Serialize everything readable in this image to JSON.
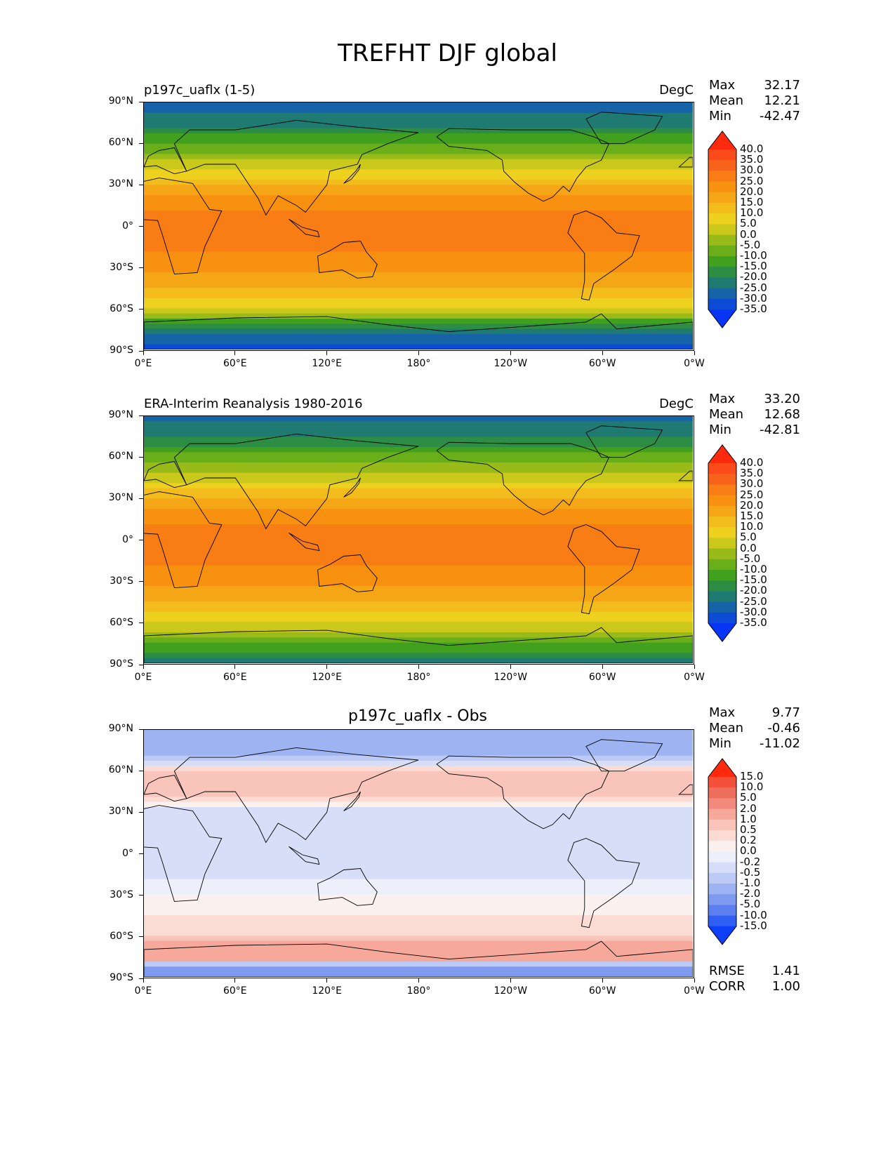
{
  "suptitle": "TREFHT DJF global",
  "panels": [
    {
      "left_title": "p197c_uaflx (1-5)",
      "right_title": "DegC",
      "center_title": "",
      "stats": [
        {
          "label": "Max",
          "value": "32.17"
        },
        {
          "label": "Mean",
          "value": "12.21"
        },
        {
          "label": "Min",
          "value": "-42.47"
        }
      ],
      "footer_stats": []
    },
    {
      "left_title": "ERA-Interim Reanalysis 1980-2016",
      "right_title": "DegC",
      "center_title": "",
      "stats": [
        {
          "label": "Max",
          "value": "33.20"
        },
        {
          "label": "Mean",
          "value": "12.68"
        },
        {
          "label": "Min",
          "value": "-42.81"
        }
      ],
      "footer_stats": []
    },
    {
      "left_title": "",
      "right_title": "",
      "center_title": "p197c_uaflx - Obs",
      "stats": [
        {
          "label": "Max",
          "value": "9.77"
        },
        {
          "label": "Mean",
          "value": "-0.46"
        },
        {
          "label": "Min",
          "value": "-11.02"
        }
      ],
      "footer_stats": [
        {
          "label": "RMSE",
          "value": "1.41"
        },
        {
          "label": "CORR",
          "value": "1.00"
        }
      ]
    }
  ],
  "axes": {
    "yticks": [
      "90°N",
      "60°N",
      "30°N",
      "0°",
      "30°S",
      "60°S",
      "90°S"
    ],
    "xticks": [
      "0°E",
      "60°E",
      "120°E",
      "180°",
      "120°W",
      "60°W",
      "0°W"
    ]
  },
  "colorbars": {
    "temperature": {
      "ticks": [
        "40.0",
        "35.0",
        "30.0",
        "25.0",
        "20.0",
        "15.0",
        "10.0",
        "5.0",
        "0.0",
        "-5.0",
        "-10.0",
        "-15.0",
        "-20.0",
        "-25.0",
        "-30.0",
        "-35.0"
      ],
      "colors": [
        "#ff2a0e",
        "#fb4b1b",
        "#f8631b",
        "#f77d14",
        "#f8910f",
        "#f5a616",
        "#f2bc1c",
        "#eed11f",
        "#c9c81b",
        "#98bb1a",
        "#6aae19",
        "#42a01f",
        "#2d8d45",
        "#1f7a72",
        "#1663a8",
        "#0d4ad6",
        "#0635f5"
      ]
    },
    "difference": {
      "ticks": [
        "15.0",
        "10.0",
        "5.0",
        "2.0",
        "1.0",
        "0.5",
        "0.2",
        "0.0",
        "-0.2",
        "-0.5",
        "-1.0",
        "-2.0",
        "-5.0",
        "-10.0",
        "-15.0"
      ],
      "colors": [
        "#ff2a0e",
        "#f4503a",
        "#ee6e5c",
        "#f18a7c",
        "#f6a89b",
        "#f9c4ba",
        "#fbdcd5",
        "#fbf2ef",
        "#edf0fb",
        "#d6def8",
        "#bccaf5",
        "#9eb4f2",
        "#7e9bef",
        "#5c7ff0",
        "#2f5ff2",
        "#0d3ff8"
      ]
    }
  },
  "chart_data": [
    {
      "type": "heatmap",
      "title": "p197c_uaflx (1-5)",
      "units": "DegC",
      "x": [
        "0°E",
        "60°E",
        "120°E",
        "180°",
        "120°W",
        "60°W",
        "0°W"
      ],
      "y": [
        "90°N",
        "60°N",
        "30°N",
        "0°",
        "30°S",
        "60°S",
        "90°S"
      ],
      "color_levels": [
        -35,
        -30,
        -25,
        -20,
        -15,
        -10,
        -5,
        0,
        5,
        10,
        15,
        20,
        25,
        30,
        35,
        40
      ],
      "zonal_mean_by_lat": {
        "lat": [
          90,
          75,
          60,
          45,
          30,
          15,
          0,
          -15,
          -30,
          -45,
          -60,
          -75,
          -90
        ],
        "value": [
          -30,
          -22,
          -10,
          2,
          14,
          24,
          27,
          26,
          22,
          14,
          5,
          -20,
          -35
        ]
      },
      "stats": {
        "max": 32.17,
        "mean": 12.21,
        "min": -42.47
      }
    },
    {
      "type": "heatmap",
      "title": "ERA-Interim Reanalysis 1980-2016",
      "units": "DegC",
      "x": [
        "0°E",
        "60°E",
        "120°E",
        "180°",
        "120°W",
        "60°W",
        "0°W"
      ],
      "y": [
        "90°N",
        "60°N",
        "30°N",
        "0°",
        "30°S",
        "60°S",
        "90°S"
      ],
      "color_levels": [
        -35,
        -30,
        -25,
        -20,
        -15,
        -10,
        -5,
        0,
        5,
        10,
        15,
        20,
        25,
        30,
        35,
        40
      ],
      "zonal_mean_by_lat": {
        "lat": [
          90,
          75,
          60,
          45,
          30,
          15,
          0,
          -15,
          -30,
          -45,
          -60,
          -75,
          -90
        ],
        "value": [
          -28,
          -20,
          -8,
          3,
          15,
          24,
          27,
          26,
          22,
          14,
          5,
          -8,
          -25
        ]
      },
      "stats": {
        "max": 33.2,
        "mean": 12.68,
        "min": -42.81
      }
    },
    {
      "type": "heatmap",
      "title": "p197c_uaflx - Obs",
      "x": [
        "0°E",
        "60°E",
        "120°E",
        "180°",
        "120°W",
        "60°W",
        "0°W"
      ],
      "y": [
        "90°N",
        "60°N",
        "30°N",
        "0°",
        "30°S",
        "60°S",
        "90°S"
      ],
      "color_levels": [
        -15,
        -10,
        -5,
        -2,
        -1,
        -0.5,
        -0.2,
        0,
        0.2,
        0.5,
        1,
        2,
        5,
        10,
        15
      ],
      "zonal_mean_by_lat": {
        "lat": [
          90,
          75,
          60,
          45,
          30,
          15,
          0,
          -15,
          -30,
          -45,
          -60,
          -75,
          -90
        ],
        "value": [
          -2,
          -1.5,
          0.5,
          1,
          -0.5,
          -0.5,
          -0.3,
          -0.3,
          0,
          0.2,
          0.5,
          2,
          -5
        ]
      },
      "stats": {
        "max": 9.77,
        "mean": -0.46,
        "min": -11.02,
        "rmse": 1.41,
        "corr": 1.0
      }
    }
  ]
}
